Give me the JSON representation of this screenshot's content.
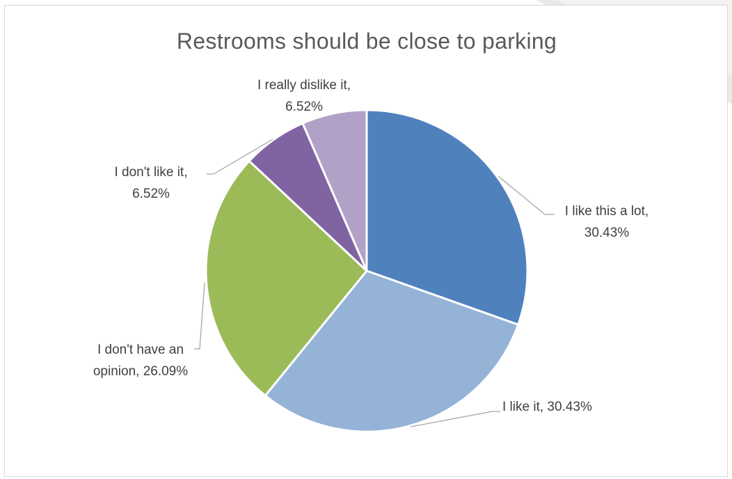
{
  "chart_data": {
    "type": "pie",
    "title": "Restrooms should be close to parking",
    "slices": [
      {
        "label": "I like this a lot",
        "value": 30.43,
        "label_lines": [
          "I like this a lot,",
          "30.43%"
        ],
        "color": "#4F81BD"
      },
      {
        "label": "I like it",
        "value": 30.43,
        "label_lines": [
          "I like it, 30.43%"
        ],
        "color": "#95B3D7"
      },
      {
        "label": "I don't have an opinion",
        "value": 26.09,
        "label_lines": [
          "I don't have an",
          "opinion, 26.09%"
        ],
        "color": "#9BBB59"
      },
      {
        "label": "I don't like it",
        "value": 6.52,
        "label_lines": [
          "I don't like it,",
          "6.52%"
        ],
        "color": "#8064A2"
      },
      {
        "label": "I really dislike it",
        "value": 6.52,
        "label_lines": [
          "I really dislike it,",
          "6.52%"
        ],
        "color": "#B2A1C7"
      }
    ],
    "start_angle_deg": 0,
    "direction": "clockwise",
    "legend": "none",
    "data_labels": "outside-with-leader-lines"
  }
}
